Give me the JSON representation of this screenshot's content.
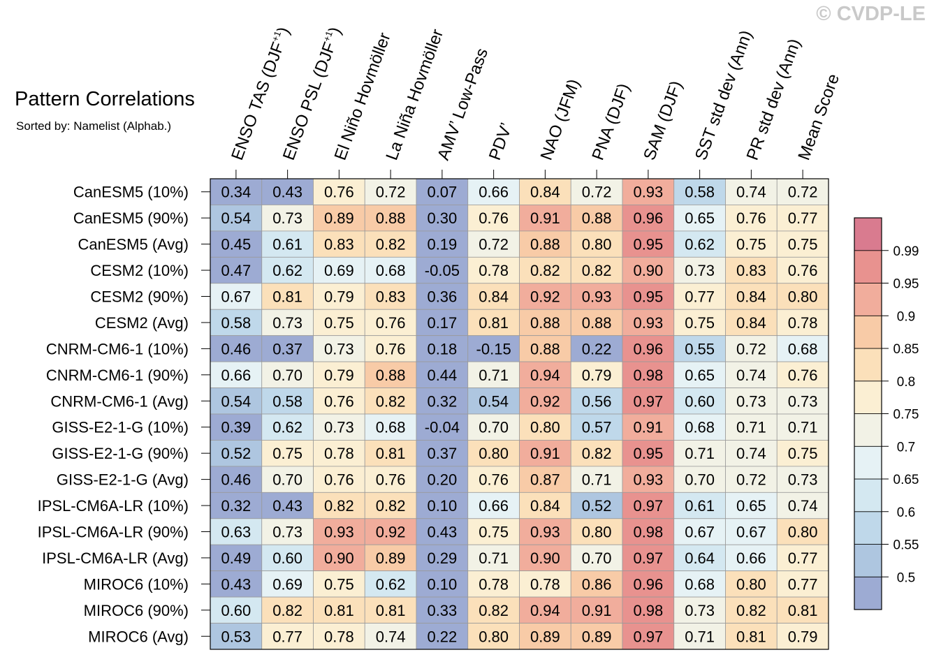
{
  "title": "Pattern Correlations",
  "subtitle": "Sorted by: Namelist (Alphab.)",
  "watermark": "© CVDP-LE",
  "chart_data": {
    "type": "heatmap",
    "columns": [
      "ENSO TAS (DJF+1)",
      "ENSO PSL (DJF+1)",
      "El Niño Hovmöller",
      "La Niña Hovmöller",
      "AMV’ Low-Pass",
      "PDV’",
      "NAO (JFM)",
      "PNA (DJF)",
      "SAM (DJF)",
      "SST std dev (Ann)",
      "PR std dev (Ann)",
      "Mean Score"
    ],
    "rows": [
      "CanESM5 (10%)",
      "CanESM5 (90%)",
      "CanESM5 (Avg)",
      "CESM2 (10%)",
      "CESM2 (90%)",
      "CESM2 (Avg)",
      "CNRM-CM6-1 (10%)",
      "CNRM-CM6-1 (90%)",
      "CNRM-CM6-1 (Avg)",
      "GISS-E2-1-G (10%)",
      "GISS-E2-1-G (90%)",
      "GISS-E2-1-G (Avg)",
      "IPSL-CM6A-LR (10%)",
      "IPSL-CM6A-LR (90%)",
      "IPSL-CM6A-LR (Avg)",
      "MIROC6 (10%)",
      "MIROC6 (90%)",
      "MIROC6 (Avg)"
    ],
    "values": [
      [
        "0.34",
        "0.43",
        "0.76",
        "0.72",
        "0.07",
        "0.66",
        "0.84",
        "0.72",
        "0.93",
        "0.58",
        "0.74",
        "0.72"
      ],
      [
        "0.54",
        "0.73",
        "0.89",
        "0.88",
        "0.30",
        "0.76",
        "0.91",
        "0.88",
        "0.96",
        "0.65",
        "0.76",
        "0.77"
      ],
      [
        "0.45",
        "0.61",
        "0.83",
        "0.82",
        "0.19",
        "0.72",
        "0.88",
        "0.80",
        "0.95",
        "0.62",
        "0.75",
        "0.75"
      ],
      [
        "0.47",
        "0.62",
        "0.69",
        "0.68",
        "-0.05",
        "0.78",
        "0.82",
        "0.82",
        "0.90",
        "0.73",
        "0.83",
        "0.76"
      ],
      [
        "0.67",
        "0.81",
        "0.79",
        "0.83",
        "0.36",
        "0.84",
        "0.92",
        "0.93",
        "0.95",
        "0.77",
        "0.84",
        "0.80"
      ],
      [
        "0.58",
        "0.73",
        "0.75",
        "0.76",
        "0.17",
        "0.81",
        "0.88",
        "0.88",
        "0.93",
        "0.75",
        "0.84",
        "0.78"
      ],
      [
        "0.46",
        "0.37",
        "0.73",
        "0.76",
        "0.18",
        "-0.15",
        "0.88",
        "0.22",
        "0.96",
        "0.55",
        "0.72",
        "0.68"
      ],
      [
        "0.66",
        "0.70",
        "0.79",
        "0.88",
        "0.44",
        "0.71",
        "0.94",
        "0.79",
        "0.98",
        "0.65",
        "0.74",
        "0.76"
      ],
      [
        "0.54",
        "0.58",
        "0.76",
        "0.82",
        "0.32",
        "0.54",
        "0.92",
        "0.56",
        "0.97",
        "0.60",
        "0.73",
        "0.73"
      ],
      [
        "0.39",
        "0.62",
        "0.73",
        "0.68",
        "-0.04",
        "0.70",
        "0.80",
        "0.57",
        "0.91",
        "0.68",
        "0.71",
        "0.71"
      ],
      [
        "0.52",
        "0.75",
        "0.78",
        "0.81",
        "0.37",
        "0.80",
        "0.91",
        "0.82",
        "0.95",
        "0.71",
        "0.74",
        "0.75"
      ],
      [
        "0.46",
        "0.70",
        "0.76",
        "0.76",
        "0.20",
        "0.76",
        "0.87",
        "0.71",
        "0.93",
        "0.70",
        "0.72",
        "0.73"
      ],
      [
        "0.32",
        "0.43",
        "0.82",
        "0.82",
        "0.10",
        "0.66",
        "0.84",
        "0.52",
        "0.97",
        "0.61",
        "0.65",
        "0.74"
      ],
      [
        "0.63",
        "0.73",
        "0.93",
        "0.92",
        "0.43",
        "0.75",
        "0.93",
        "0.80",
        "0.98",
        "0.67",
        "0.67",
        "0.80"
      ],
      [
        "0.49",
        "0.60",
        "0.90",
        "0.89",
        "0.29",
        "0.71",
        "0.90",
        "0.70",
        "0.97",
        "0.64",
        "0.66",
        "0.77"
      ],
      [
        "0.43",
        "0.69",
        "0.75",
        "0.62",
        "0.10",
        "0.78",
        "0.78",
        "0.86",
        "0.96",
        "0.68",
        "0.80",
        "0.77"
      ],
      [
        "0.60",
        "0.82",
        "0.81",
        "0.81",
        "0.33",
        "0.82",
        "0.94",
        "0.91",
        "0.98",
        "0.73",
        "0.82",
        "0.81"
      ],
      [
        "0.53",
        "0.77",
        "0.78",
        "0.74",
        "0.22",
        "0.80",
        "0.89",
        "0.89",
        "0.97",
        "0.71",
        "0.81",
        "0.79"
      ]
    ],
    "colorbar": {
      "levels": [
        0.5,
        0.55,
        0.6,
        0.65,
        0.7,
        0.75,
        0.8,
        0.85,
        0.9,
        0.95,
        0.99
      ],
      "labels": [
        "0.5",
        "0.55",
        "0.6",
        "0.65",
        "0.7",
        "0.75",
        "0.8",
        "0.85",
        "0.9",
        "0.95",
        "0.99"
      ],
      "colors": [
        "#9dabd3",
        "#aec6e0",
        "#bfd8ea",
        "#d4e8f1",
        "#e6f2f5",
        "#f2f2e6",
        "#fbefd3",
        "#fbe0ba",
        "#f8cba7",
        "#f1ad9c",
        "#e8928f",
        "#d97b8f"
      ]
    }
  }
}
